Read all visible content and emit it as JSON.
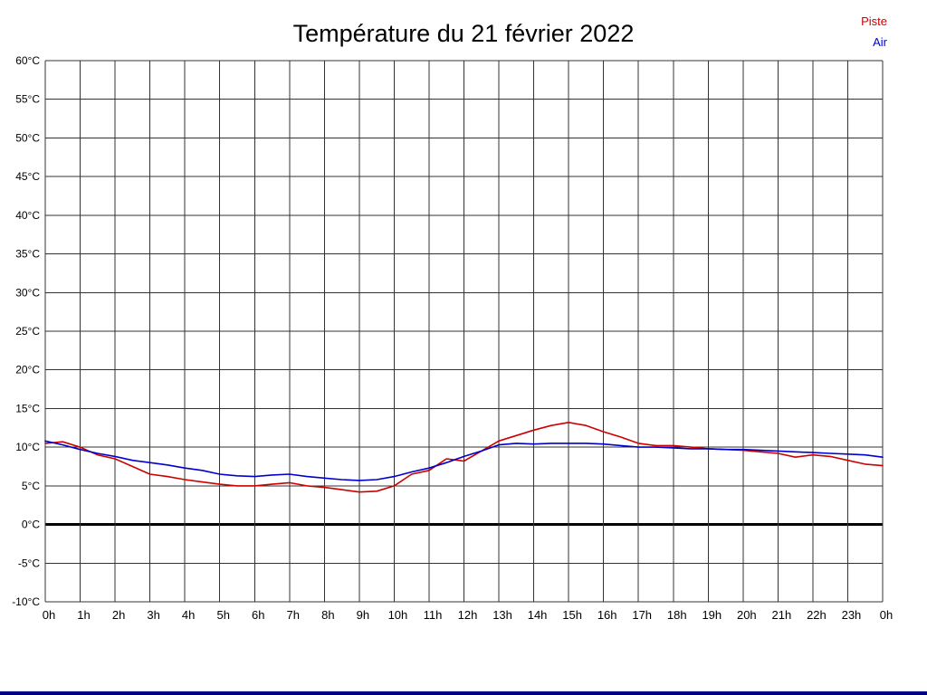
{
  "title": "Température du 21 février 2022",
  "legend": [
    {
      "label": "Piste",
      "color": "#cc0000"
    },
    {
      "label": "Air",
      "color": "#0000cc"
    }
  ],
  "colors": {
    "grid": "#333333",
    "zero_line": "#000000",
    "axis_text": "#000000",
    "bottom_bar": "#000080"
  },
  "chart_data": {
    "type": "line",
    "title": "Température du 21 février 2022",
    "xlabel": "",
    "ylabel": "",
    "grid": true,
    "legend_position": "top-right",
    "ylim": [
      -10,
      60
    ],
    "y_tick_step": 5,
    "y_tick_labels": [
      "60°C",
      "55°C",
      "50°C",
      "45°C",
      "40°C",
      "35°C",
      "30°C",
      "25°C",
      "20°C",
      "15°C",
      "10°C",
      "5°C",
      "0°C",
      "-5°C",
      "-10°C"
    ],
    "x_range_hours": [
      0,
      24
    ],
    "x_tick_labels": [
      "0h",
      "1h",
      "2h",
      "3h",
      "4h",
      "5h",
      "6h",
      "7h",
      "8h",
      "9h",
      "10h",
      "11h",
      "12h",
      "13h",
      "14h",
      "15h",
      "16h",
      "17h",
      "18h",
      "19h",
      "20h",
      "21h",
      "22h",
      "23h",
      "0h"
    ],
    "zero_line": true,
    "x": [
      0,
      0.5,
      1,
      1.5,
      2,
      2.5,
      3,
      3.5,
      4,
      4.5,
      5,
      5.5,
      6,
      6.5,
      7,
      7.5,
      8,
      8.5,
      9,
      9.5,
      10,
      10.5,
      11,
      11.5,
      12,
      12.5,
      13,
      13.5,
      14,
      14.5,
      15,
      15.5,
      16,
      16.5,
      17,
      17.5,
      18,
      18.5,
      19,
      19.5,
      20,
      20.5,
      21,
      21.5,
      22,
      22.5,
      23,
      23.5,
      24
    ],
    "series": [
      {
        "name": "Piste",
        "color": "#cc0000",
        "values": [
          10.5,
          10.7,
          10,
          9,
          8.5,
          7.5,
          6.5,
          6.2,
          5.8,
          5.5,
          5.2,
          5,
          5,
          5.2,
          5.4,
          5,
          4.8,
          4.5,
          4.2,
          4.3,
          5,
          6.5,
          7,
          8.5,
          8.2,
          9.5,
          10.8,
          11.5,
          12.2,
          12.8,
          13.2,
          12.8,
          12,
          11.3,
          10.5,
          10.2,
          10.2,
          10,
          9.8,
          9.7,
          9.6,
          9.4,
          9.2,
          8.7,
          9,
          8.8,
          8.3,
          7.8,
          7.6
        ]
      },
      {
        "name": "Air",
        "color": "#0000cc",
        "values": [
          10.8,
          10.3,
          9.7,
          9.2,
          8.8,
          8.3,
          8,
          7.7,
          7.3,
          7,
          6.5,
          6.3,
          6.2,
          6.4,
          6.5,
          6.2,
          6,
          5.8,
          5.7,
          5.8,
          6.2,
          6.8,
          7.3,
          8,
          8.8,
          9.5,
          10.3,
          10.5,
          10.4,
          10.5,
          10.5,
          10.5,
          10.4,
          10.2,
          10,
          10,
          9.9,
          9.8,
          9.8,
          9.7,
          9.7,
          9.6,
          9.5,
          9.4,
          9.3,
          9.2,
          9.1,
          9,
          8.7
        ]
      }
    ]
  }
}
